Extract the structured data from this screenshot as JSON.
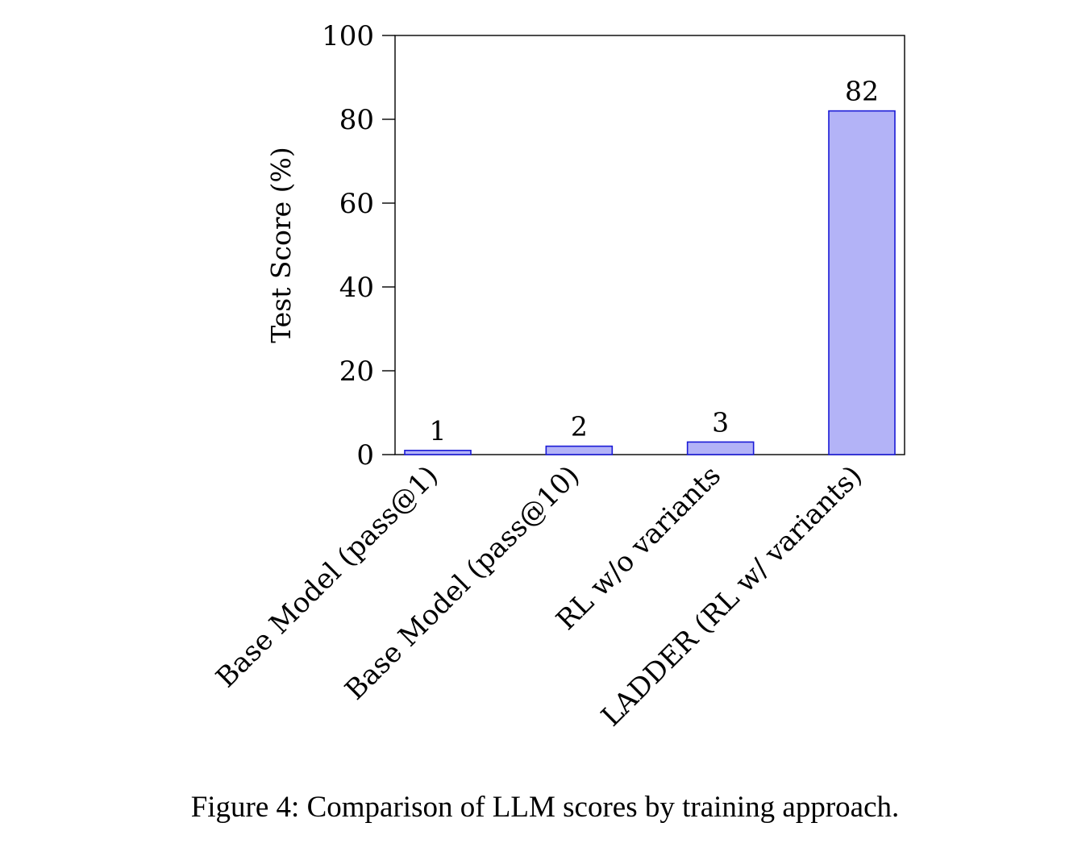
{
  "chart_data": {
    "type": "bar",
    "categories": [
      "Base Model (pass@1)",
      "Base Model (pass@10)",
      "RL w/o variants",
      "LADDER (RL w/ variants)"
    ],
    "values": [
      1,
      2,
      3,
      82
    ],
    "data_labels": [
      "1",
      "2",
      "3",
      "82"
    ],
    "xlabel": "",
    "ylabel": "Test Score (%)",
    "ylim": [
      0,
      100
    ],
    "yticks": [
      0,
      20,
      40,
      60,
      80,
      100
    ],
    "grid": false,
    "bar_fill": "#b3b3f7",
    "bar_stroke": "#1a1ad6"
  },
  "caption": "Figure 4: Comparison of LLM scores by training approach."
}
